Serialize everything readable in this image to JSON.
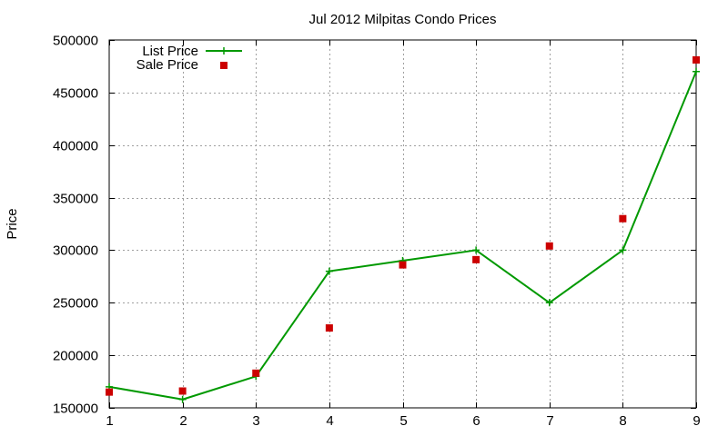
{
  "chart_data": {
    "type": "line",
    "title": "Jul 2012 Milpitas Condo Prices",
    "xlabel": "",
    "ylabel": "Price",
    "x": [
      1,
      2,
      3,
      4,
      5,
      6,
      7,
      8,
      9
    ],
    "x_ticks": [
      "1",
      "2",
      "3",
      "4",
      "5",
      "6",
      "7",
      "8",
      "9"
    ],
    "y_ticks": [
      "150000",
      "200000",
      "250000",
      "300000",
      "350000",
      "400000",
      "450000",
      "500000"
    ],
    "xlim": [
      1,
      9
    ],
    "ylim": [
      150000,
      500000
    ],
    "grid": true,
    "legend": "top-left",
    "series": [
      {
        "name": "List Price",
        "style": "line-with-plus-markers",
        "color": "#009900",
        "values": [
          170000,
          158000,
          180000,
          280000,
          290000,
          300000,
          250000,
          300000,
          470000
        ]
      },
      {
        "name": "Sale Price",
        "style": "square-markers",
        "color": "#cc0000",
        "values": [
          165000,
          166000,
          183000,
          226000,
          286000,
          291000,
          304000,
          330000,
          481000
        ]
      }
    ]
  }
}
